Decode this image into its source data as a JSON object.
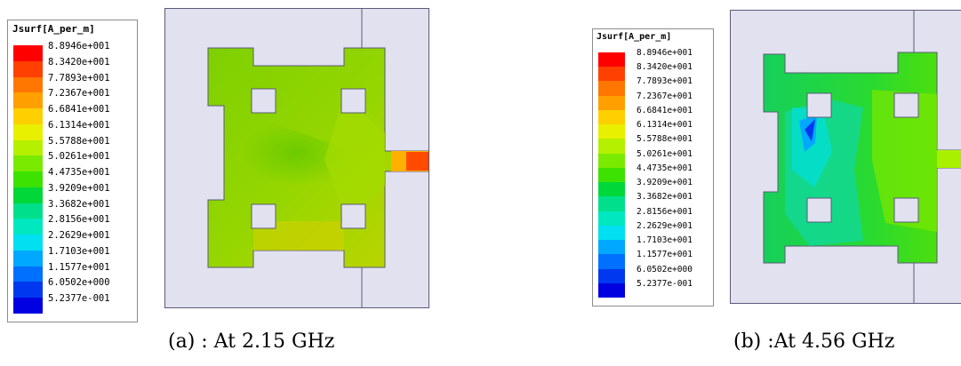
{
  "panel_a": {
    "legend_title": "Jsurf[A_per_m]",
    "legend_values": [
      "8.8946e+001",
      "8.3420e+001",
      "7.7893e+001",
      "7.2367e+001",
      "6.6841e+001",
      "6.1314e+001",
      "5.5788e+001",
      "5.0261e+001",
      "4.4735e+001",
      "3.9209e+001",
      "3.3682e+001",
      "2.8156e+001",
      "2.2629e+001",
      "1.7103e+001",
      "1.1577e+001",
      "6.0502e+000",
      "5.2377e-001"
    ],
    "caption": "(a) : At 2.15 GHz"
  },
  "panel_b": {
    "legend_title": "Jsurf[A_per_m]",
    "legend_values": [
      "8.8946e+001",
      "8.3420e+001",
      "7.7893e+001",
      "7.2367e+001",
      "6.6841e+001",
      "6.1314e+001",
      "5.5788e+001",
      "5.0261e+001",
      "4.4735e+001",
      "3.9209e+001",
      "3.3682e+001",
      "2.8156e+001",
      "2.2629e+001",
      "1.7103e+001",
      "1.1577e+001",
      "6.0502e+000",
      "5.2377e-001"
    ],
    "caption": "(b) :At 4.56 GHz"
  },
  "colors": {
    "colorbar": [
      "#ff0000",
      "#ff4000",
      "#ff7700",
      "#ffa000",
      "#ffd000",
      "#e8f000",
      "#b4f000",
      "#7aea00",
      "#3ee200",
      "#00d83a",
      "#00e08a",
      "#00e8c0",
      "#00e0f0",
      "#00a8ff",
      "#0070ff",
      "#0038f0",
      "#0000e0"
    ],
    "substrate": "#e1e1f0",
    "line": "#5a5a78"
  }
}
